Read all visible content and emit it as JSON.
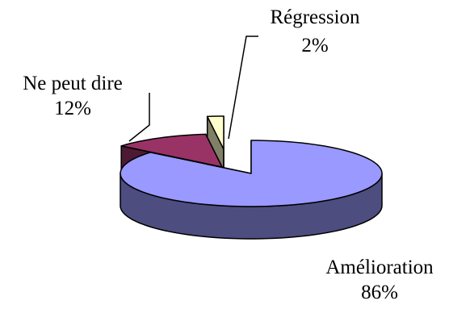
{
  "chart_data": {
    "type": "pie",
    "style": "3d-exploded",
    "title": "",
    "legend": "none",
    "slices": [
      {
        "label": "Amélioration",
        "value": 86,
        "value_label": "86%",
        "color": "#9999ff",
        "side_color": "#4d4d80"
      },
      {
        "label": "Ne peut dire",
        "value": 12,
        "value_label": "12%",
        "color": "#993366",
        "side_color": "#4d1a33"
      },
      {
        "label": "Régression",
        "value": 2,
        "value_label": "2%",
        "color": "#ffffcc",
        "side_color": "#808066"
      }
    ]
  }
}
